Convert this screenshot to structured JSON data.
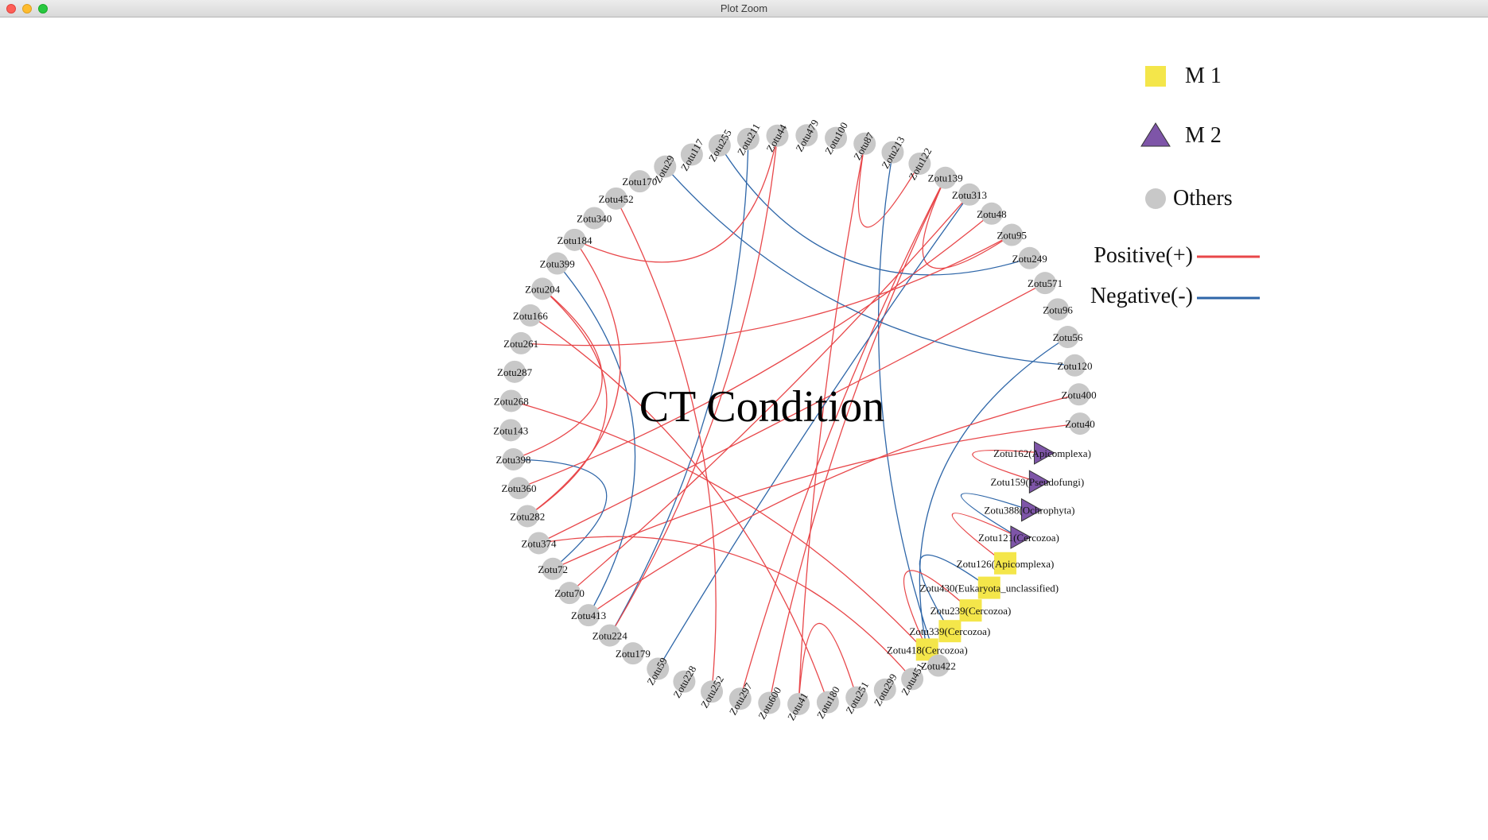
{
  "window": {
    "title": "Plot Zoom"
  },
  "colors": {
    "positive_edge": "#e8474a",
    "negative_edge": "#2e66a8",
    "module1_fill": "#f4e64a",
    "module2_fill": "#7e55a8",
    "others_fill": "#c8c8c8"
  },
  "plot": {
    "title": "CT Condition"
  },
  "legend": {
    "module1": "M 1",
    "module2": "M 2",
    "others": "Others",
    "positive": "Positive(+)",
    "negative": "Negative(-)"
  },
  "chart_data": {
    "type": "network",
    "layout": "circular",
    "title": "CT Condition",
    "node_groups": [
      "M 1",
      "M 2",
      "Others"
    ],
    "nodes": [
      {
        "label": "Zotu213",
        "group": "Others"
      },
      {
        "label": "Zotu122",
        "group": "Others"
      },
      {
        "label": "Zotu139",
        "group": "Others"
      },
      {
        "label": "Zotu313",
        "group": "Others"
      },
      {
        "label": "Zotu48",
        "group": "Others"
      },
      {
        "label": "Zotu95",
        "group": "Others"
      },
      {
        "label": "Zotu249",
        "group": "Others"
      },
      {
        "label": "Zotu571",
        "group": "Others"
      },
      {
        "label": "Zotu96",
        "group": "Others"
      },
      {
        "label": "Zotu56",
        "group": "Others"
      },
      {
        "label": "Zotu120",
        "group": "Others"
      },
      {
        "label": "Zotu400",
        "group": "Others"
      },
      {
        "label": "Zotu40",
        "group": "Others"
      },
      {
        "label": "Zotu162(Apicomplexa)",
        "group": "M 2"
      },
      {
        "label": "Zotu159(Pseudofungi)",
        "group": "M 2"
      },
      {
        "label": "Zotu388(Ochrophyta)",
        "group": "M 2"
      },
      {
        "label": "Zotu121(Cercozoa)",
        "group": "M 2"
      },
      {
        "label": "Zotu126(Apicomplexa)",
        "group": "M 1"
      },
      {
        "label": "Zotu430(Eukaryota_unclassified)",
        "group": "M 1"
      },
      {
        "label": "Zotu239(Cercozoa)",
        "group": "M 1"
      },
      {
        "label": "Zotu339(Cercozoa)",
        "group": "M 1"
      },
      {
        "label": "Zotu418(Cercozoa)",
        "group": "M 1"
      },
      {
        "label": "Zotu422",
        "group": "Others"
      },
      {
        "label": "Zotu451",
        "group": "Others"
      },
      {
        "label": "Zotu299",
        "group": "Others"
      },
      {
        "label": "Zotu251",
        "group": "Others"
      },
      {
        "label": "Zotu180",
        "group": "Others"
      },
      {
        "label": "Zotu41",
        "group": "Others"
      },
      {
        "label": "Zotu600",
        "group": "Others"
      },
      {
        "label": "Zotu297",
        "group": "Others"
      },
      {
        "label": "Zotu252",
        "group": "Others"
      },
      {
        "label": "Zotu228",
        "group": "Others"
      },
      {
        "label": "Zotu59",
        "group": "Others"
      },
      {
        "label": "Zotu179",
        "group": "Others"
      },
      {
        "label": "Zotu224",
        "group": "Others"
      },
      {
        "label": "Zotu413",
        "group": "Others"
      },
      {
        "label": "Zotu70",
        "group": "Others"
      },
      {
        "label": "Zotu72",
        "group": "Others"
      },
      {
        "label": "Zotu374",
        "group": "Others"
      },
      {
        "label": "Zotu282",
        "group": "Others"
      },
      {
        "label": "Zotu360",
        "group": "Others"
      },
      {
        "label": "Zotu398",
        "group": "Others"
      },
      {
        "label": "Zotu143",
        "group": "Others"
      },
      {
        "label": "Zotu268",
        "group": "Others"
      },
      {
        "label": "Zotu287",
        "group": "Others"
      },
      {
        "label": "Zotu261",
        "group": "Others"
      },
      {
        "label": "Zotu166",
        "group": "Others"
      },
      {
        "label": "Zotu204",
        "group": "Others"
      },
      {
        "label": "Zotu399",
        "group": "Others"
      },
      {
        "label": "Zotu184",
        "group": "Others"
      },
      {
        "label": "Zotu340",
        "group": "Others"
      },
      {
        "label": "Zotu452",
        "group": "Others"
      },
      {
        "label": "Zotu170",
        "group": "Others"
      },
      {
        "label": "Zotu29",
        "group": "Others"
      },
      {
        "label": "Zotu117",
        "group": "Others"
      },
      {
        "label": "Zotu255",
        "group": "Others"
      },
      {
        "label": "Zotu211",
        "group": "Others"
      },
      {
        "label": "Zotu44",
        "group": "Others"
      },
      {
        "label": "Zotu479",
        "group": "Others"
      },
      {
        "label": "Zotu100",
        "group": "Others"
      },
      {
        "label": "Zotu87",
        "group": "Others"
      }
    ],
    "edges": [
      {
        "source": "Zotu87",
        "target": "Zotu122",
        "sign": "positive"
      },
      {
        "source": "Zotu87",
        "target": "Zotu41",
        "sign": "positive"
      },
      {
        "source": "Zotu213",
        "target": "Zotu422",
        "sign": "negative"
      },
      {
        "source": "Zotu139",
        "target": "Zotu95",
        "sign": "positive"
      },
      {
        "source": "Zotu139",
        "target": "Zotu600",
        "sign": "positive"
      },
      {
        "source": "Zotu139",
        "target": "Zotu297",
        "sign": "positive"
      },
      {
        "source": "Zotu313",
        "target": "Zotu59",
        "sign": "negative"
      },
      {
        "source": "Zotu48",
        "target": "Zotu360",
        "sign": "positive"
      },
      {
        "source": "Zotu249",
        "target": "Zotu255",
        "sign": "negative"
      },
      {
        "source": "Zotu571",
        "target": "Zotu374",
        "sign": "positive"
      },
      {
        "source": "Zotu120",
        "target": "Zotu29",
        "sign": "negative"
      },
      {
        "source": "Zotu40",
        "target": "Zotu72",
        "sign": "positive"
      },
      {
        "source": "Zotu211",
        "target": "Zotu224",
        "sign": "negative"
      },
      {
        "source": "Zotu44",
        "target": "Zotu224",
        "sign": "positive"
      },
      {
        "source": "Zotu44",
        "target": "Zotu184",
        "sign": "positive"
      },
      {
        "source": "Zotu452",
        "target": "Zotu252",
        "sign": "positive"
      },
      {
        "source": "Zotu399",
        "target": "Zotu413",
        "sign": "negative"
      },
      {
        "source": "Zotu166",
        "target": "Zotu180",
        "sign": "positive"
      },
      {
        "source": "Zotu268",
        "target": "Zotu422",
        "sign": "positive"
      },
      {
        "source": "Zotu261",
        "target": "Zotu95",
        "sign": "positive"
      },
      {
        "source": "Zotu398",
        "target": "Zotu72",
        "sign": "negative"
      },
      {
        "source": "Zotu374",
        "target": "Zotu451",
        "sign": "positive"
      },
      {
        "source": "Zotu282",
        "target": "Zotu184",
        "sign": "positive"
      },
      {
        "source": "Zotu282",
        "target": "Zotu204",
        "sign": "positive"
      },
      {
        "source": "Zotu398",
        "target": "Zotu204",
        "sign": "positive"
      },
      {
        "source": "Zotu313",
        "target": "Zotu70",
        "sign": "positive"
      },
      {
        "source": "Zotu56",
        "target": "Zotu418(Cercozoa)",
        "sign": "negative"
      },
      {
        "source": "Zotu400",
        "target": "Zotu413",
        "sign": "positive"
      },
      {
        "source": "Zotu251",
        "target": "Zotu41",
        "sign": "positive"
      },
      {
        "source": "Zotu162(Apicomplexa)",
        "target": "Zotu159(Pseudofungi)",
        "sign": "positive"
      },
      {
        "source": "Zotu121(Cercozoa)",
        "target": "Zotu126(Apicomplexa)",
        "sign": "positive"
      },
      {
        "source": "Zotu430(Eukaryota_unclassified)",
        "target": "Zotu339(Cercozoa)",
        "sign": "negative"
      },
      {
        "source": "Zotu239(Cercozoa)",
        "target": "Zotu418(Cercozoa)",
        "sign": "positive"
      },
      {
        "source": "Zotu388(Ochrophyta)",
        "target": "Zotu121(Cercozoa)",
        "sign": "negative"
      }
    ]
  }
}
